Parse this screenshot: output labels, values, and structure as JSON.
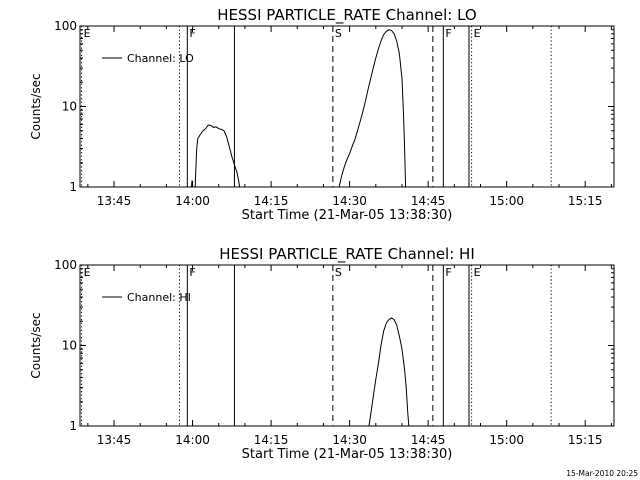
{
  "footer_timestamp": "15-Mar-2010 20:25",
  "chart_data": [
    {
      "type": "line",
      "title": "HESSI PARTICLE_RATE Channel: LO",
      "xlabel": "Start Time (21-Mar-05 13:38:30)",
      "ylabel": "Counts/sec",
      "x_unit": "minutes since 13:38:30",
      "xlim": [
        0,
        102
      ],
      "ylim": [
        1,
        100
      ],
      "y_scale": "log",
      "x_ticks": [
        {
          "at": 6.5,
          "label": "13:45"
        },
        {
          "at": 21.5,
          "label": "14:00"
        },
        {
          "at": 36.5,
          "label": "14:15"
        },
        {
          "at": 51.5,
          "label": "14:30"
        },
        {
          "at": 66.5,
          "label": "14:45"
        },
        {
          "at": 81.5,
          "label": "15:00"
        },
        {
          "at": 96.5,
          "label": "15:15"
        }
      ],
      "y_ticks": [
        {
          "at": 1,
          "label": "1"
        },
        {
          "at": 10,
          "label": "10"
        },
        {
          "at": 100,
          "label": "100"
        }
      ],
      "legend": {
        "label": "Channel: LO",
        "position": "top-left"
      },
      "markers": [
        {
          "x": 0.3,
          "style": "dotted",
          "label": "E"
        },
        {
          "x": 19.0,
          "style": "dotted",
          "label": ""
        },
        {
          "x": 20.5,
          "style": "solid",
          "label": "F"
        },
        {
          "x": 29.5,
          "style": "solid",
          "label": ""
        },
        {
          "x": 48.3,
          "style": "dashed",
          "label": "S"
        },
        {
          "x": 67.4,
          "style": "dashed",
          "label": ""
        },
        {
          "x": 69.4,
          "style": "solid",
          "label": "F"
        },
        {
          "x": 74.3,
          "style": "solid",
          "label": ""
        },
        {
          "x": 74.8,
          "style": "dotted",
          "label": "E"
        },
        {
          "x": 90.0,
          "style": "dotted",
          "label": ""
        }
      ],
      "series": [
        {
          "segments": [
            [
              [
                21.3,
                1
              ],
              [
                21.4,
                1.2
              ],
              [
                21.5,
                1
              ]
            ],
            [
              [
                22.0,
                1
              ],
              [
                22.1,
                1.5
              ],
              [
                22.3,
                3
              ],
              [
                22.5,
                4
              ],
              [
                23.0,
                4.5
              ],
              [
                23.5,
                5
              ],
              [
                24.0,
                5.3
              ],
              [
                24.5,
                5.9
              ],
              [
                25.0,
                5.8
              ],
              [
                25.5,
                5.5
              ],
              [
                26.0,
                5.6
              ],
              [
                26.5,
                5.3
              ],
              [
                27.0,
                5.2
              ],
              [
                27.5,
                5
              ],
              [
                28.0,
                4.2
              ],
              [
                28.5,
                3.2
              ],
              [
                29.0,
                2.4
              ],
              [
                29.5,
                1.9
              ],
              [
                30.0,
                1.5
              ],
              [
                30.3,
                1.2
              ],
              [
                30.5,
                1
              ]
            ],
            [
              [
                49.5,
                1
              ],
              [
                50.0,
                1.4
              ],
              [
                50.5,
                1.8
              ],
              [
                51.0,
                2.2
              ],
              [
                51.5,
                2.6
              ],
              [
                52.0,
                3.2
              ],
              [
                52.5,
                3.9
              ],
              [
                53.0,
                5
              ],
              [
                53.5,
                6.5
              ],
              [
                54.0,
                8.5
              ],
              [
                54.5,
                11.5
              ],
              [
                55.0,
                16
              ],
              [
                55.5,
                22
              ],
              [
                56.0,
                30
              ],
              [
                56.5,
                40
              ],
              [
                57.0,
                52
              ],
              [
                57.5,
                65
              ],
              [
                58.0,
                78
              ],
              [
                58.5,
                86
              ],
              [
                59.0,
                90
              ],
              [
                59.5,
                88
              ],
              [
                60.0,
                80
              ],
              [
                60.5,
                65
              ],
              [
                61.0,
                45
              ],
              [
                61.5,
                22
              ],
              [
                61.8,
                8
              ],
              [
                62.0,
                3
              ],
              [
                62.2,
                1
              ]
            ]
          ]
        }
      ]
    },
    {
      "type": "line",
      "title": "HESSI PARTICLE_RATE Channel: HI",
      "xlabel": "Start Time (21-Mar-05 13:38:30)",
      "ylabel": "Counts/sec",
      "x_unit": "minutes since 13:38:30",
      "xlim": [
        0,
        102
      ],
      "ylim": [
        1,
        100
      ],
      "y_scale": "log",
      "x_ticks": [
        {
          "at": 6.5,
          "label": "13:45"
        },
        {
          "at": 21.5,
          "label": "14:00"
        },
        {
          "at": 36.5,
          "label": "14:15"
        },
        {
          "at": 51.5,
          "label": "14:30"
        },
        {
          "at": 66.5,
          "label": "14:45"
        },
        {
          "at": 81.5,
          "label": "15:00"
        },
        {
          "at": 96.5,
          "label": "15:15"
        }
      ],
      "y_ticks": [
        {
          "at": 1,
          "label": "1"
        },
        {
          "at": 10,
          "label": "10"
        },
        {
          "at": 100,
          "label": "100"
        }
      ],
      "legend": {
        "label": "Channel: HI",
        "position": "top-left"
      },
      "markers": [
        {
          "x": 0.3,
          "style": "dotted",
          "label": "E"
        },
        {
          "x": 19.0,
          "style": "dotted",
          "label": ""
        },
        {
          "x": 20.5,
          "style": "solid",
          "label": "F"
        },
        {
          "x": 29.5,
          "style": "solid",
          "label": ""
        },
        {
          "x": 48.3,
          "style": "dashed",
          "label": "S"
        },
        {
          "x": 67.4,
          "style": "dashed",
          "label": ""
        },
        {
          "x": 69.4,
          "style": "solid",
          "label": "F"
        },
        {
          "x": 74.3,
          "style": "solid",
          "label": ""
        },
        {
          "x": 74.8,
          "style": "dotted",
          "label": "E"
        },
        {
          "x": 90.0,
          "style": "dotted",
          "label": ""
        }
      ],
      "series": [
        {
          "segments": [
            [
              [
                55.2,
                1
              ],
              [
                55.6,
                1.5
              ],
              [
                56.0,
                2.3
              ],
              [
                56.5,
                3.8
              ],
              [
                57.0,
                6
              ],
              [
                57.5,
                10
              ],
              [
                58.0,
                15
              ],
              [
                58.5,
                19
              ],
              [
                59.0,
                21
              ],
              [
                59.5,
                22
              ],
              [
                60.0,
                21
              ],
              [
                60.5,
                18
              ],
              [
                61.0,
                13
              ],
              [
                61.5,
                9
              ],
              [
                62.0,
                5
              ],
              [
                62.3,
                3
              ],
              [
                62.6,
                1.5
              ],
              [
                62.8,
                1
              ]
            ]
          ]
        }
      ]
    }
  ]
}
